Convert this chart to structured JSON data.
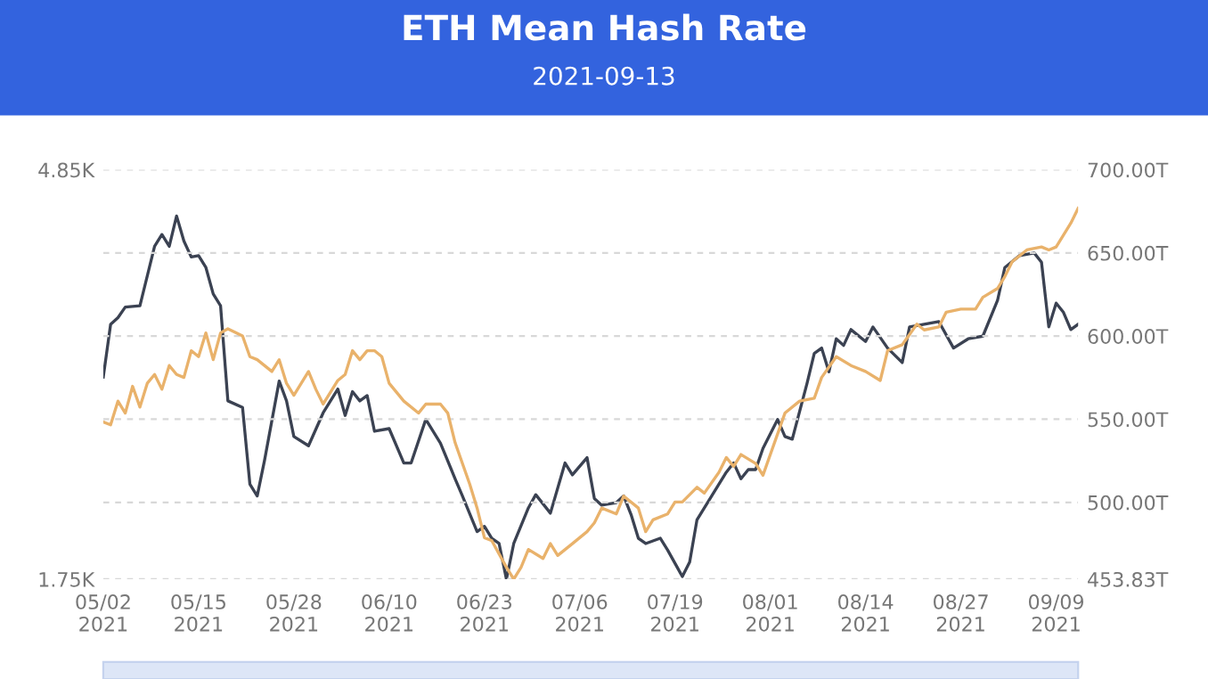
{
  "chart_data": {
    "type": "line",
    "title": "ETH Mean Hash Rate",
    "subtitle": "2021-09-13",
    "xlim": [
      "2021-05-02",
      "2021-09-12"
    ],
    "xticks": [
      {
        "value": "2021-05-02",
        "label": "05/02\n2021"
      },
      {
        "value": "2021-05-15",
        "label": "05/15\n2021"
      },
      {
        "value": "2021-05-28",
        "label": "05/28\n2021"
      },
      {
        "value": "2021-06-10",
        "label": "06/10\n2021"
      },
      {
        "value": "2021-06-23",
        "label": "06/23\n2021"
      },
      {
        "value": "2021-07-06",
        "label": "07/06\n2021"
      },
      {
        "value": "2021-07-19",
        "label": "07/19\n2021"
      },
      {
        "value": "2021-08-01",
        "label": "08/01\n2021"
      },
      {
        "value": "2021-08-14",
        "label": "08/14\n2021"
      },
      {
        "value": "2021-08-27",
        "label": "08/27\n2021"
      },
      {
        "value": "2021-09-09",
        "label": "09/09\n2021"
      }
    ],
    "ylim": [
      1.75,
      4.85
    ],
    "yticks": [
      {
        "value": 1.75,
        "label": "1.75K"
      },
      {
        "value": 4.85,
        "label": "4.85K"
      }
    ],
    "y2lim": [
      453.83,
      700.0
    ],
    "y2ticks": [
      {
        "value": 453.83,
        "label": "453.83T"
      },
      {
        "value": 500,
        "label": "500.00T"
      },
      {
        "value": 550,
        "label": "550.00T"
      },
      {
        "value": 600,
        "label": "600.00T"
      },
      {
        "value": 650,
        "label": "650.00T"
      },
      {
        "value": 700,
        "label": "700.00T"
      }
    ],
    "grid": "y",
    "line_style": "solid",
    "marker": "none",
    "series": [
      {
        "color": "#3b4252",
        "axis": "y",
        "x": [
          "2021-05-02",
          "2021-05-03",
          "2021-05-04",
          "2021-05-05",
          "2021-05-07",
          "2021-05-09",
          "2021-05-10",
          "2021-05-11",
          "2021-05-12",
          "2021-05-13",
          "2021-05-14",
          "2021-05-15",
          "2021-05-16",
          "2021-05-17",
          "2021-05-18",
          "2021-05-19",
          "2021-05-21",
          "2021-05-22",
          "2021-05-23",
          "2021-05-24",
          "2021-05-26",
          "2021-05-27",
          "2021-05-28",
          "2021-05-30",
          "2021-06-01",
          "2021-06-03",
          "2021-06-04",
          "2021-06-05",
          "2021-06-06",
          "2021-06-07",
          "2021-06-08",
          "2021-06-10",
          "2021-06-12",
          "2021-06-13",
          "2021-06-15",
          "2021-06-17",
          "2021-06-19",
          "2021-06-20",
          "2021-06-22",
          "2021-06-23",
          "2021-06-24",
          "2021-06-25",
          "2021-06-26",
          "2021-06-27",
          "2021-06-29",
          "2021-06-30",
          "2021-07-02",
          "2021-07-04",
          "2021-07-05",
          "2021-07-07",
          "2021-07-08",
          "2021-07-09",
          "2021-07-11",
          "2021-07-12",
          "2021-07-13",
          "2021-07-14",
          "2021-07-15",
          "2021-07-17",
          "2021-07-18",
          "2021-07-20",
          "2021-07-21",
          "2021-07-22",
          "2021-07-24",
          "2021-07-26",
          "2021-07-27",
          "2021-07-28",
          "2021-07-29",
          "2021-07-30",
          "2021-07-31",
          "2021-08-02",
          "2021-08-03",
          "2021-08-04",
          "2021-08-06",
          "2021-08-07",
          "2021-08-08",
          "2021-08-09",
          "2021-08-10",
          "2021-08-11",
          "2021-08-12",
          "2021-08-14",
          "2021-08-15",
          "2021-08-17",
          "2021-08-19",
          "2021-08-20",
          "2021-08-22",
          "2021-08-24",
          "2021-08-26",
          "2021-08-28",
          "2021-08-30",
          "2021-09-01",
          "2021-09-02",
          "2021-09-04",
          "2021-09-06",
          "2021-09-07",
          "2021-09-08",
          "2021-09-09",
          "2021-09-10",
          "2021-09-11",
          "2021-09-12"
        ],
        "values": [
          3.28,
          3.68,
          3.73,
          3.81,
          3.82,
          4.27,
          4.36,
          4.27,
          4.5,
          4.31,
          4.19,
          4.2,
          4.11,
          3.91,
          3.82,
          3.1,
          3.05,
          2.47,
          2.38,
          2.65,
          3.25,
          3.1,
          2.83,
          2.76,
          3.01,
          3.19,
          2.99,
          3.17,
          3.1,
          3.14,
          2.87,
          2.89,
          2.63,
          2.63,
          2.96,
          2.78,
          2.51,
          2.38,
          2.11,
          2.15,
          2.06,
          2.02,
          1.75,
          2.02,
          2.29,
          2.39,
          2.25,
          2.63,
          2.54,
          2.67,
          2.36,
          2.31,
          2.33,
          2.38,
          2.24,
          2.06,
          2.02,
          2.06,
          1.97,
          1.77,
          1.88,
          2.2,
          2.38,
          2.56,
          2.63,
          2.51,
          2.58,
          2.58,
          2.74,
          2.96,
          2.83,
          2.81,
          3.23,
          3.46,
          3.5,
          3.32,
          3.57,
          3.52,
          3.64,
          3.55,
          3.66,
          3.5,
          3.39,
          3.66,
          3.68,
          3.7,
          3.5,
          3.57,
          3.59,
          3.86,
          4.11,
          4.2,
          4.22,
          4.15,
          3.66,
          3.84,
          3.77,
          3.64,
          3.68
        ]
      },
      {
        "color": "#e9b26b",
        "axis": "y2",
        "x": [
          "2021-05-02",
          "2021-05-03",
          "2021-05-04",
          "2021-05-05",
          "2021-05-06",
          "2021-05-07",
          "2021-05-08",
          "2021-05-09",
          "2021-05-10",
          "2021-05-11",
          "2021-05-12",
          "2021-05-13",
          "2021-05-14",
          "2021-05-15",
          "2021-05-16",
          "2021-05-17",
          "2021-05-18",
          "2021-05-19",
          "2021-05-21",
          "2021-05-22",
          "2021-05-23",
          "2021-05-25",
          "2021-05-26",
          "2021-05-27",
          "2021-05-28",
          "2021-05-30",
          "2021-05-31",
          "2021-06-01",
          "2021-06-03",
          "2021-06-04",
          "2021-06-05",
          "2021-06-06",
          "2021-06-07",
          "2021-06-08",
          "2021-06-09",
          "2021-06-10",
          "2021-06-12",
          "2021-06-14",
          "2021-06-15",
          "2021-06-17",
          "2021-06-18",
          "2021-06-19",
          "2021-06-21",
          "2021-06-22",
          "2021-06-23",
          "2021-06-24",
          "2021-06-26",
          "2021-06-27",
          "2021-06-28",
          "2021-06-29",
          "2021-07-01",
          "2021-07-02",
          "2021-07-03",
          "2021-07-05",
          "2021-07-07",
          "2021-07-08",
          "2021-07-09",
          "2021-07-11",
          "2021-07-12",
          "2021-07-14",
          "2021-07-15",
          "2021-07-16",
          "2021-07-18",
          "2021-07-19",
          "2021-07-20",
          "2021-07-22",
          "2021-07-23",
          "2021-07-25",
          "2021-07-26",
          "2021-07-27",
          "2021-07-28",
          "2021-07-30",
          "2021-07-31",
          "2021-08-02",
          "2021-08-03",
          "2021-08-05",
          "2021-08-07",
          "2021-08-08",
          "2021-08-10",
          "2021-08-12",
          "2021-08-14",
          "2021-08-16",
          "2021-08-17",
          "2021-08-19",
          "2021-08-21",
          "2021-08-22",
          "2021-08-24",
          "2021-08-25",
          "2021-08-27",
          "2021-08-29",
          "2021-08-30",
          "2021-09-01",
          "2021-09-02",
          "2021-09-03",
          "2021-09-05",
          "2021-09-07",
          "2021-09-08",
          "2021-09-09",
          "2021-09-11",
          "2021-09-12"
        ],
        "values": [
          548.4,
          546.6,
          560.9,
          553.7,
          569.8,
          557.3,
          571.6,
          576.9,
          568.0,
          582.3,
          576.9,
          575.1,
          591.2,
          587.6,
          601.9,
          585.8,
          601.9,
          604.4,
          600.1,
          587.6,
          585.8,
          578.7,
          585.8,
          571.6,
          564.4,
          578.7,
          568.0,
          559.1,
          573.3,
          576.9,
          591.2,
          585.8,
          591.2,
          591.2,
          587.6,
          571.6,
          560.9,
          553.7,
          559.1,
          559.1,
          553.7,
          535.9,
          510.9,
          496.6,
          478.8,
          477.0,
          461.0,
          453.83,
          461.0,
          471.7,
          466.3,
          475.2,
          468.1,
          475.2,
          482.4,
          487.7,
          496.6,
          493.1,
          503.8,
          496.6,
          482.4,
          489.5,
          493.1,
          500.2,
          500.2,
          509.1,
          505.6,
          518.1,
          527.0,
          521.6,
          528.8,
          523.4,
          516.3,
          541.2,
          553.7,
          560.9,
          562.6,
          575.1,
          587.6,
          582.3,
          578.7,
          573.3,
          591.2,
          594.8,
          607.2,
          603.7,
          605.5,
          614.4,
          616.2,
          616.2,
          623.3,
          628.6,
          635.8,
          644.7,
          651.8,
          653.6,
          651.8,
          653.6,
          667.9,
          676.8
        ]
      }
    ]
  }
}
